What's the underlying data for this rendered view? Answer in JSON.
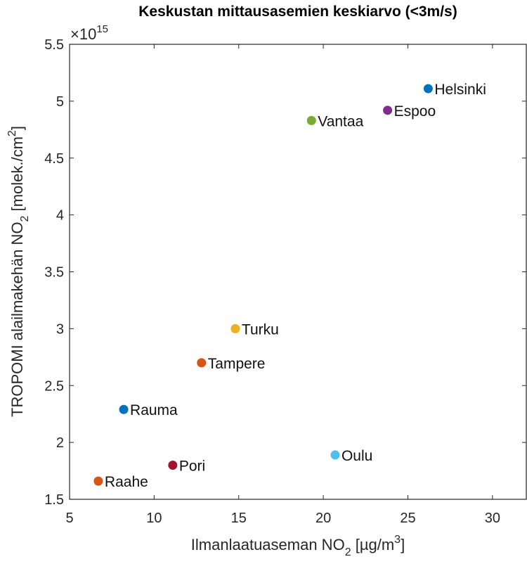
{
  "chart_data": {
    "type": "scatter",
    "title": "Keskustan mittausasemien keskiarvo (<3m/s)",
    "xlabel": {
      "main": "Ilmanlaatuaseman NO",
      "sub": "2",
      "rest": " [µg/m",
      "sup": "3",
      "end": "]"
    },
    "ylabel": {
      "main": "TROPOMI alailmakehän NO",
      "sub": "2",
      "rest": " [molek./cm",
      "sup": "2",
      "end": "]"
    },
    "y_exponent": {
      "base": "×10",
      "exp": "15"
    },
    "xlim": [
      5,
      32
    ],
    "ylim": [
      1.5,
      5.5
    ],
    "xticks": [
      "5",
      "10",
      "15",
      "20",
      "25",
      "30"
    ],
    "xtick_values": [
      5,
      10,
      15,
      20,
      25,
      30
    ],
    "yticks": [
      "1.5",
      "2",
      "2.5",
      "3",
      "3.5",
      "4",
      "4.5",
      "5",
      "5.5"
    ],
    "ytick_values": [
      1.5,
      2,
      2.5,
      3,
      3.5,
      4,
      4.5,
      5,
      5.5
    ],
    "grid": false,
    "points": [
      {
        "label": "Helsinki",
        "x": 26.2,
        "y": 5.11,
        "color": "#0072BD"
      },
      {
        "label": "Espoo",
        "x": 23.8,
        "y": 4.92,
        "color": "#7E2F8E"
      },
      {
        "label": "Vantaa",
        "x": 19.3,
        "y": 4.83,
        "color": "#77AC30"
      },
      {
        "label": "Turku",
        "x": 14.8,
        "y": 3.0,
        "color": "#EDB120"
      },
      {
        "label": "Tampere",
        "x": 12.8,
        "y": 2.7,
        "color": "#D95319"
      },
      {
        "label": "Rauma",
        "x": 8.2,
        "y": 2.29,
        "color": "#0072BD"
      },
      {
        "label": "Pori",
        "x": 11.1,
        "y": 1.8,
        "color": "#A2142F"
      },
      {
        "label": "Oulu",
        "x": 20.7,
        "y": 1.89,
        "color": "#4DBEEE"
      },
      {
        "label": "Raahe",
        "x": 6.7,
        "y": 1.66,
        "color": "#D95319"
      }
    ]
  }
}
